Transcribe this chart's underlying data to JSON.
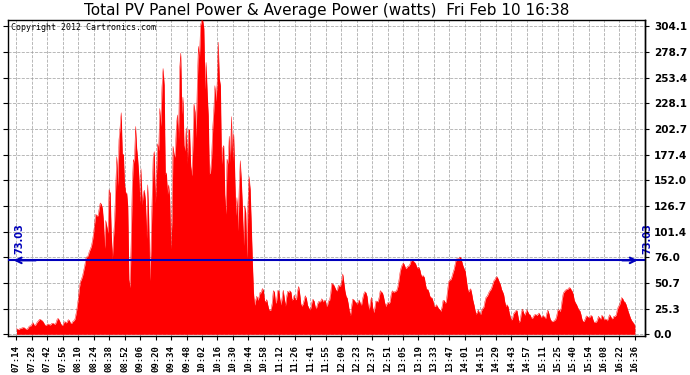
{
  "title": "Total PV Panel Power & Average Power (watts)  Fri Feb 10 16:38",
  "copyright": "Copyright 2012 Cartronics.com",
  "avg_line_value": 73.03,
  "ymax": 304.1,
  "yticks": [
    0.0,
    25.3,
    50.7,
    76.0,
    101.4,
    126.7,
    152.0,
    177.4,
    202.7,
    228.1,
    253.4,
    278.7,
    304.1
  ],
  "area_color": "#FF0000",
  "line_color": "#0000BB",
  "background_color": "#FFFFFF",
  "grid_color": "#999999",
  "title_fontsize": 11,
  "xtick_labels": [
    "07:14",
    "07:28",
    "07:42",
    "07:56",
    "08:10",
    "08:24",
    "08:38",
    "08:52",
    "09:06",
    "09:20",
    "09:34",
    "09:48",
    "10:02",
    "10:16",
    "10:30",
    "10:44",
    "10:58",
    "11:12",
    "11:26",
    "11:41",
    "11:55",
    "12:09",
    "12:23",
    "12:37",
    "12:51",
    "13:05",
    "13:19",
    "13:33",
    "13:47",
    "14:01",
    "14:15",
    "14:29",
    "14:43",
    "14:57",
    "15:11",
    "15:25",
    "15:40",
    "15:54",
    "16:08",
    "16:22",
    "16:36"
  ]
}
